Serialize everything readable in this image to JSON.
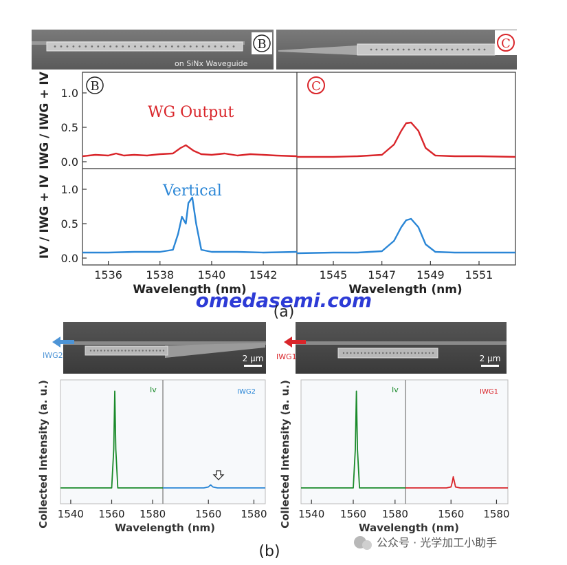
{
  "panel_a": {
    "sem_left_marker": "B",
    "sem_left_caption": "on SiNx Waveguide",
    "sem_right_marker": "C",
    "col_left_marker": "B",
    "col_right_marker": "C",
    "wg_output_label": "WG Output",
    "vertical_label": "Vertical",
    "ylabel_top": "IWG / IWG + IV",
    "ylabel_bottom": "IV / IWG + IV",
    "xlabel_left": "Wavelength (nm)",
    "xlabel_right": "Wavelength (nm)",
    "yticks": [
      "0.0",
      "0.5",
      "1.0"
    ],
    "xticks_left": [
      "1536",
      "1538",
      "1540",
      "1542"
    ],
    "xticks_right": [
      "1545",
      "1547",
      "1549",
      "1551"
    ],
    "tag": "(a)"
  },
  "panel_b": {
    "left_arrow_label": "IWG2",
    "right_arrow_label": "IWG1",
    "scale_left": "2 μm",
    "scale_right": "2 μm",
    "legend_iv_left": "Iv",
    "legend_iwg2": "IWG2",
    "legend_iv_right": "Iv",
    "legend_iwg1": "IWG1",
    "ylabel_left": "Collected Intensity (a. u.)",
    "ylabel_right": "Collected Intensity (a. u.)",
    "xlabel_left": "Wavelength (nm)",
    "xlabel_right": "Wavelength (nm)",
    "xticks_left_a": [
      "1540",
      "1560",
      "1580"
    ],
    "xticks_left_b": [
      "1560",
      "1580"
    ],
    "xticks_right_a": [
      "1540",
      "1560",
      "1580"
    ],
    "xticks_right_b": [
      "1560",
      "1580"
    ],
    "tag": "(b)"
  },
  "watermark": "omedasemi.com",
  "wechat_footer": "公众号 · 光学加工小助手",
  "colors": {
    "red": "#d9252a",
    "blue": "#2a86d6",
    "green": "#1a8a2a",
    "dark": "#222222"
  },
  "chart_data": [
    {
      "type": "line",
      "title": "",
      "xlabel": "Wavelength (nm)",
      "ylabel": "IWG / IWG + IV",
      "xlim": [
        1535,
        1543.3
      ],
      "ylim": [
        -0.1,
        1.3
      ],
      "series": [
        {
          "name": "WG Output",
          "color": "#d9252a",
          "x": [
            1535,
            1535.5,
            1536,
            1536.3,
            1536.6,
            1537,
            1537.5,
            1538,
            1538.5,
            1538.8,
            1539,
            1539.3,
            1539.6,
            1540,
            1540.5,
            1541,
            1541.5,
            1542,
            1542.5,
            1543.3
          ],
          "y": [
            0.08,
            0.1,
            0.09,
            0.12,
            0.09,
            0.1,
            0.09,
            0.11,
            0.12,
            0.2,
            0.24,
            0.16,
            0.11,
            0.1,
            0.12,
            0.09,
            0.11,
            0.1,
            0.09,
            0.08
          ]
        }
      ]
    },
    {
      "type": "line",
      "title": "",
      "xlabel": "Wavelength (nm)",
      "ylabel": "IWG / IWG + IV",
      "xlim": [
        1543.5,
        1552.5
      ],
      "ylim": [
        -0.1,
        1.3
      ],
      "series": [
        {
          "name": "WG Output",
          "color": "#d9252a",
          "x": [
            1543.5,
            1545,
            1546,
            1547,
            1547.5,
            1547.8,
            1548,
            1548.2,
            1548.5,
            1548.8,
            1549.2,
            1550,
            1551,
            1552.5
          ],
          "y": [
            0.07,
            0.07,
            0.08,
            0.1,
            0.25,
            0.45,
            0.56,
            0.57,
            0.45,
            0.2,
            0.09,
            0.08,
            0.08,
            0.07
          ]
        }
      ]
    },
    {
      "type": "line",
      "title": "",
      "xlabel": "Wavelength (nm)",
      "ylabel": "IV / IWG + IV",
      "xlim": [
        1535,
        1543.3
      ],
      "ylim": [
        -0.1,
        1.3
      ],
      "series": [
        {
          "name": "Vertical",
          "color": "#2a86d6",
          "x": [
            1535,
            1536,
            1537,
            1538,
            1538.5,
            1538.7,
            1538.85,
            1539,
            1539.1,
            1539.25,
            1539.4,
            1539.6,
            1540,
            1541,
            1542,
            1543.3
          ],
          "y": [
            0.08,
            0.08,
            0.09,
            0.09,
            0.12,
            0.35,
            0.6,
            0.5,
            0.8,
            0.88,
            0.5,
            0.12,
            0.09,
            0.09,
            0.08,
            0.09
          ]
        }
      ]
    },
    {
      "type": "line",
      "title": "",
      "xlabel": "Wavelength (nm)",
      "ylabel": "IV / IWG + IV",
      "xlim": [
        1543.5,
        1552.5
      ],
      "ylim": [
        -0.1,
        1.3
      ],
      "series": [
        {
          "name": "Vertical",
          "color": "#2a86d6",
          "x": [
            1543.5,
            1545,
            1546,
            1547,
            1547.5,
            1547.8,
            1548,
            1548.2,
            1548.5,
            1548.8,
            1549.2,
            1550,
            1551,
            1552.5
          ],
          "y": [
            0.07,
            0.08,
            0.08,
            0.1,
            0.25,
            0.45,
            0.55,
            0.57,
            0.45,
            0.2,
            0.09,
            0.08,
            0.08,
            0.08
          ]
        }
      ]
    },
    {
      "type": "line",
      "title": "",
      "xlabel": "Wavelength (nm)",
      "ylabel": "Collected Intensity (a. u.)",
      "xlim": [
        1535,
        1585
      ],
      "ylim": [
        0,
        1
      ],
      "series": [
        {
          "name": "Iv",
          "color": "#1a8a2a",
          "x": [
            1535,
            1545,
            1555,
            1560,
            1561,
            1561.5,
            1562,
            1563,
            1570,
            1585
          ],
          "y": [
            0.02,
            0.02,
            0.02,
            0.02,
            0.4,
            0.97,
            0.4,
            0.02,
            0.02,
            0.02
          ]
        }
      ]
    },
    {
      "type": "line",
      "title": "",
      "xlabel": "Wavelength (nm)",
      "ylabel": "Collected Intensity (a. u.)",
      "xlim": [
        1540,
        1585
      ],
      "ylim": [
        0,
        1
      ],
      "series": [
        {
          "name": "IWG2",
          "color": "#2a86d6",
          "x": [
            1540,
            1550,
            1558,
            1560,
            1561,
            1562,
            1564,
            1570,
            1585
          ],
          "y": [
            0.02,
            0.02,
            0.02,
            0.03,
            0.05,
            0.03,
            0.02,
            0.02,
            0.02
          ]
        }
      ]
    },
    {
      "type": "line",
      "title": "",
      "xlabel": "Wavelength (nm)",
      "ylabel": "Collected Intensity (a. u.)",
      "xlim": [
        1535,
        1585
      ],
      "ylim": [
        0,
        1
      ],
      "series": [
        {
          "name": "Iv",
          "color": "#1a8a2a",
          "x": [
            1535,
            1545,
            1555,
            1560,
            1561,
            1561.5,
            1562,
            1563,
            1570,
            1585
          ],
          "y": [
            0.02,
            0.02,
            0.02,
            0.02,
            0.4,
            0.97,
            0.4,
            0.02,
            0.02,
            0.02
          ]
        }
      ]
    },
    {
      "type": "line",
      "title": "",
      "xlabel": "Wavelength (nm)",
      "ylabel": "Collected Intensity (a. u.)",
      "xlim": [
        1540,
        1585
      ],
      "ylim": [
        0,
        1
      ],
      "series": [
        {
          "name": "IWG1",
          "color": "#d9252a",
          "x": [
            1540,
            1550,
            1558,
            1560,
            1560.6,
            1561,
            1561.5,
            1562,
            1564,
            1570,
            1585
          ],
          "y": [
            0.02,
            0.02,
            0.02,
            0.03,
            0.08,
            0.13,
            0.08,
            0.03,
            0.02,
            0.02,
            0.02
          ]
        }
      ]
    }
  ]
}
